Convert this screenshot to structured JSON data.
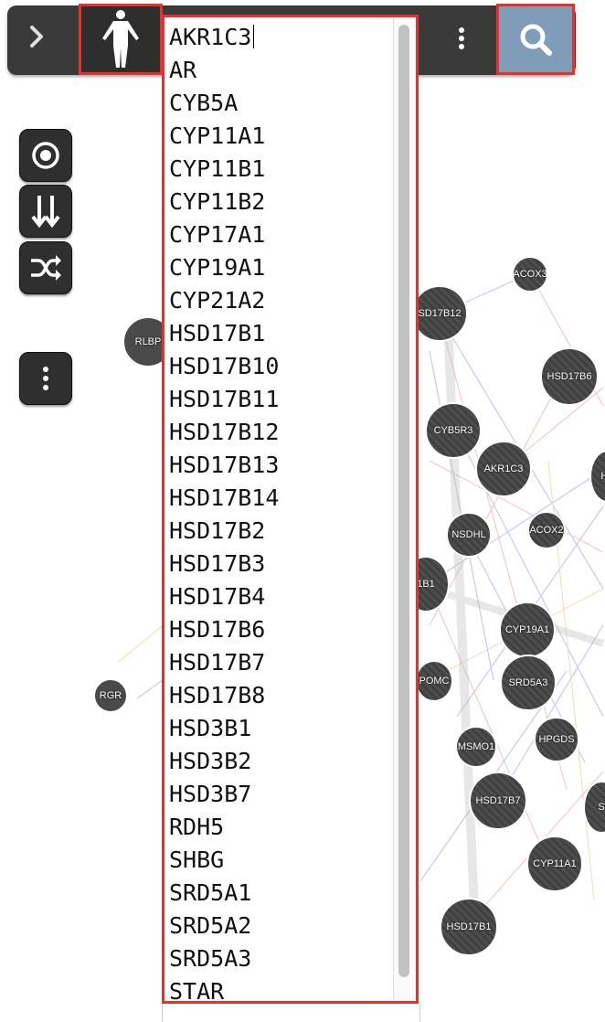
{
  "toolbar": {
    "expand_icon": "chevron-right-icon",
    "body_icon": "human-body-icon",
    "more_icon": "vertical-dots-icon",
    "search_icon": "search-icon"
  },
  "tools": {
    "focus_icon": "target-icon",
    "layout_icon": "down-arrows-icon",
    "shuffle_icon": "shuffle-icon",
    "more_icon": "vertical-dots-icon"
  },
  "gene_list": {
    "items": [
      "AKR1C3",
      "AR",
      "CYB5A",
      "CYP11A1",
      "CYP11B1",
      "CYP11B2",
      "CYP17A1",
      "CYP19A1",
      "CYP21A2",
      "HSD17B1",
      "HSD17B10",
      "HSD17B11",
      "HSD17B12",
      "HSD17B13",
      "HSD17B14",
      "HSD17B2",
      "HSD17B3",
      "HSD17B4",
      "HSD17B6",
      "HSD17B7",
      "HSD17B8",
      "HSD3B1",
      "HSD3B2",
      "HSD3B7",
      "RDH5",
      "SHBG",
      "SRD5A1",
      "SRD5A2",
      "SRD5A3",
      "STAR"
    ]
  },
  "graph": {
    "nodes": [
      "RLBP",
      "RGR",
      "ACOX3",
      "SD17B12",
      "HSD17B6",
      "CYB5R3",
      "AKR1C3",
      "HS",
      "NSDHL",
      "ACOX2",
      "1B1",
      "CYP19A1",
      "POMC",
      "SRD5A3",
      "MSMO1",
      "HPGDS",
      "HSD17B7",
      "S",
      "CYP11A1",
      "HSD17B1"
    ]
  },
  "colors": {
    "accent_red": "#e4312b",
    "search_bg": "#7f9cb9",
    "toolbar_bg": "#3a3a3a"
  }
}
